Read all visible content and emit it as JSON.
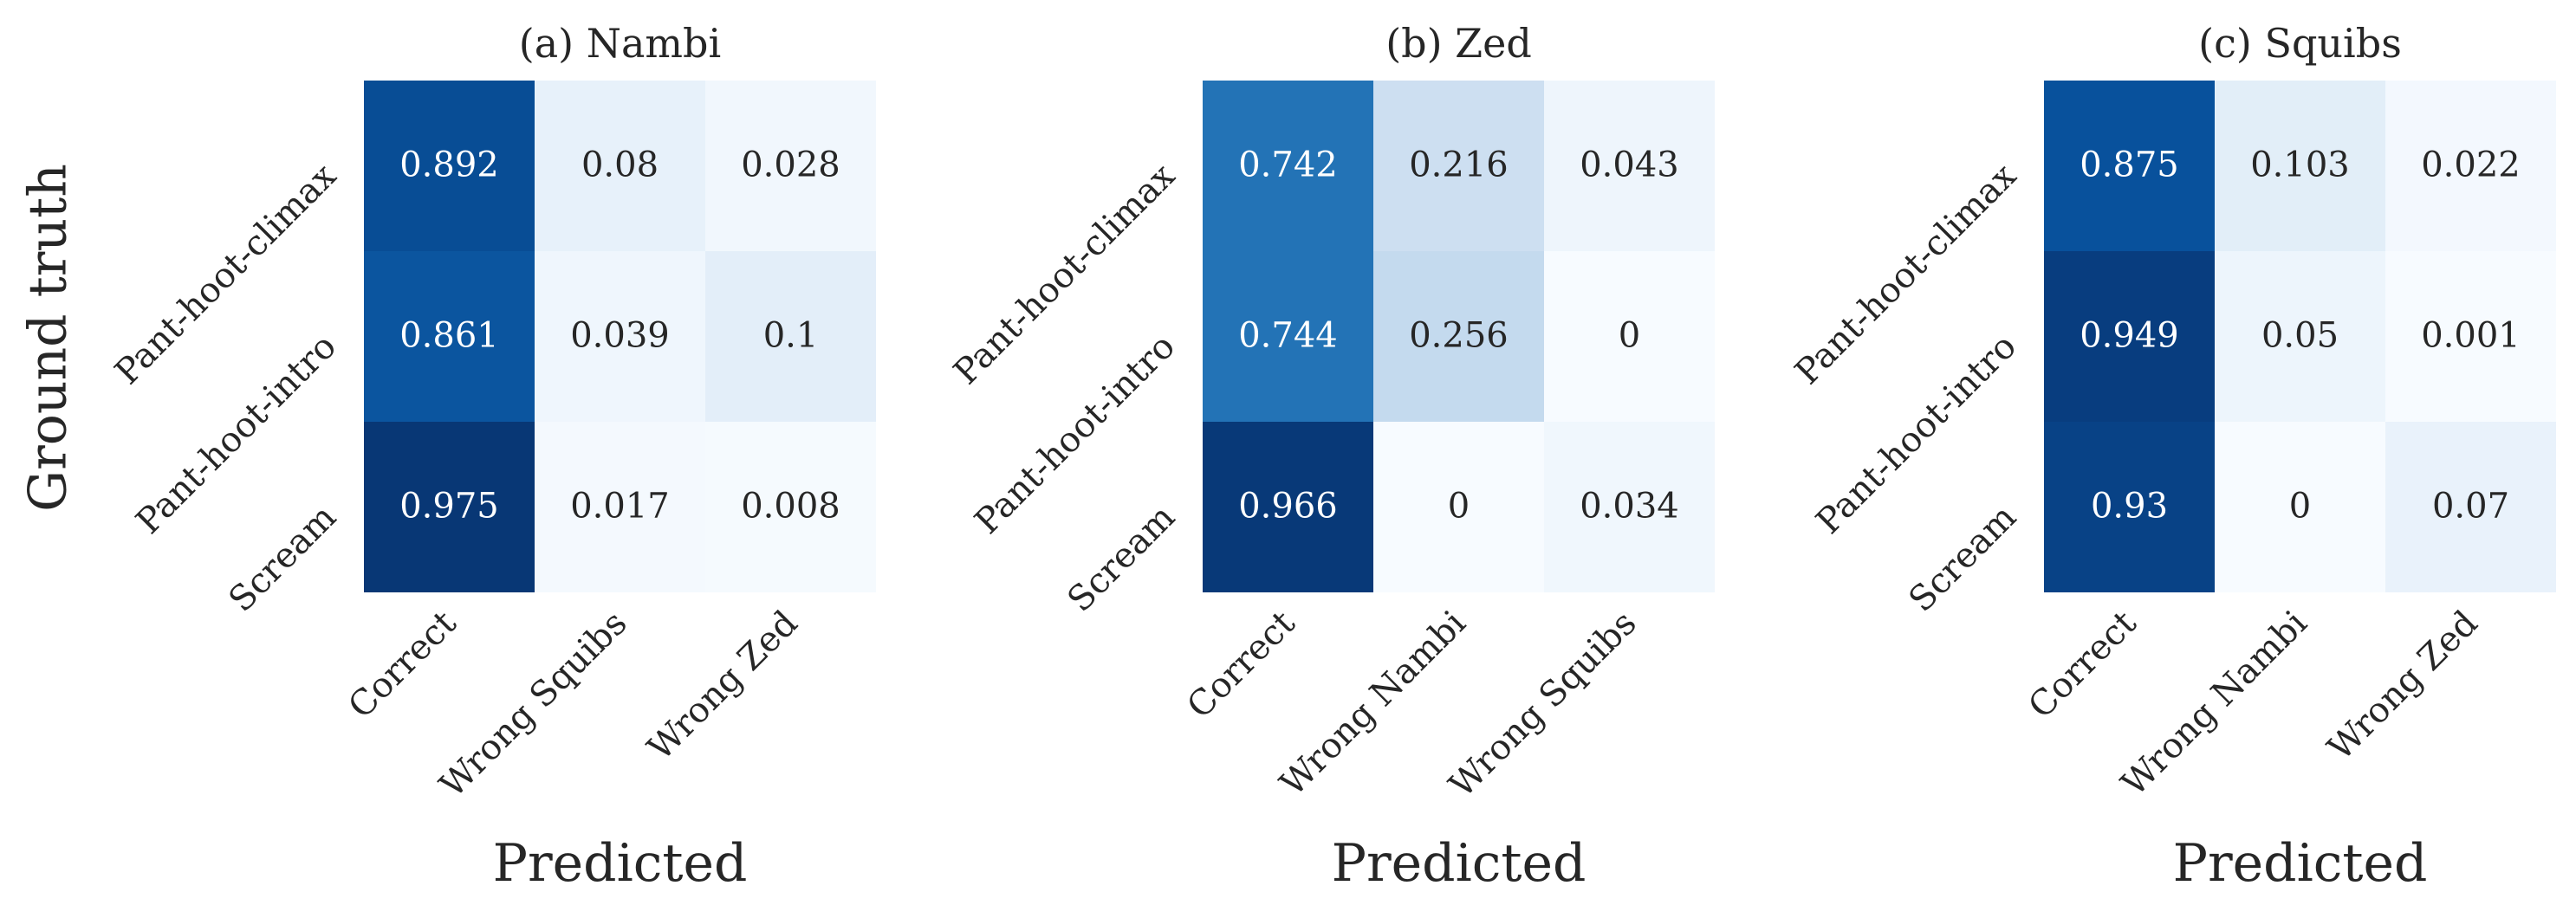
{
  "figure": {
    "ylabel": "Ground truth"
  },
  "chart_data": [
    {
      "type": "heatmap",
      "title": "(a) Nambi",
      "xlabel": "Predicted",
      "ylabel": "Ground truth",
      "rows": [
        "Pant-hoot-climax",
        "Pant-hoot-intro",
        "Scream"
      ],
      "cols": [
        "Correct",
        "Wrong Squibs",
        "Wrong Zed"
      ],
      "values": [
        [
          0.892,
          0.08,
          0.028
        ],
        [
          0.861,
          0.039,
          0.1
        ],
        [
          0.975,
          0.017,
          0.008
        ]
      ],
      "value_labels": [
        [
          "0.892",
          "0.08",
          "0.028"
        ],
        [
          "0.861",
          "0.039",
          "0.1"
        ],
        [
          "0.975",
          "0.017",
          "0.008"
        ]
      ],
      "colormap": "Blues",
      "vlim": [
        0,
        1
      ]
    },
    {
      "type": "heatmap",
      "title": "(b) Zed",
      "xlabel": "Predicted",
      "rows": [
        "Pant-hoot-climax",
        "Pant-hoot-intro",
        "Scream"
      ],
      "cols": [
        "Correct",
        "Wrong Nambi",
        "Wrong Squibs"
      ],
      "values": [
        [
          0.742,
          0.216,
          0.043
        ],
        [
          0.744,
          0.256,
          0
        ],
        [
          0.966,
          0,
          0.034
        ]
      ],
      "value_labels": [
        [
          "0.742",
          "0.216",
          "0.043"
        ],
        [
          "0.744",
          "0.256",
          "0"
        ],
        [
          "0.966",
          "0",
          "0.034"
        ]
      ],
      "colormap": "Blues",
      "vlim": [
        0,
        1
      ]
    },
    {
      "type": "heatmap",
      "title": "(c) Squibs",
      "xlabel": "Predicted",
      "rows": [
        "Pant-hoot-climax",
        "Pant-hoot-intro",
        "Scream"
      ],
      "cols": [
        "Correct",
        "Wrong Nambi",
        "Wrong Zed"
      ],
      "values": [
        [
          0.875,
          0.103,
          0.022
        ],
        [
          0.949,
          0.05,
          0.001
        ],
        [
          0.93,
          0,
          0.07
        ]
      ],
      "value_labels": [
        [
          "0.875",
          "0.103",
          "0.022"
        ],
        [
          "0.949",
          "0.05",
          "0.001"
        ],
        [
          "0.93",
          "0",
          "0.07"
        ]
      ],
      "colormap": "Blues",
      "vlim": [
        0,
        1
      ]
    }
  ]
}
